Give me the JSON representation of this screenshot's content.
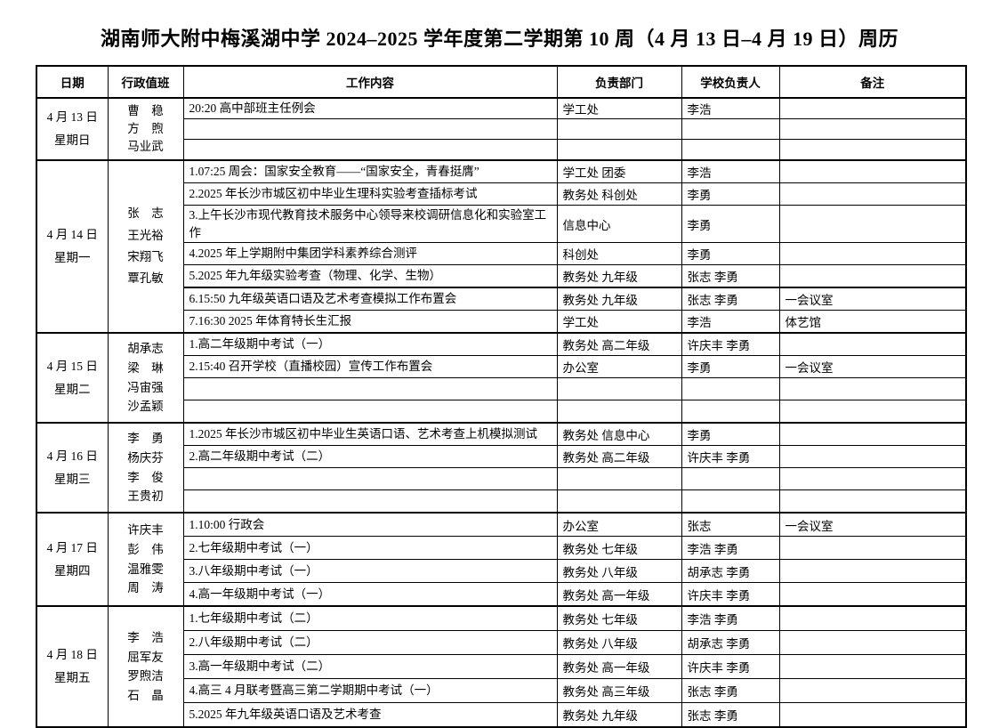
{
  "page": {
    "title": "湖南师大附中梅溪湖中学 2024–2025 学年度第二学期第 10 周（4 月 13 日–4 月 19 日）周历"
  },
  "table": {
    "headers": [
      "日期",
      "行政值班",
      "工作内容",
      "负责部门",
      "学校负责人",
      "备注"
    ],
    "days": [
      {
        "date": "4 月 13 日",
        "weekday": "星期日",
        "duty": [
          "曹　稳",
          "方　煦",
          "马业武"
        ],
        "rows": [
          {
            "content": "20:20 高中部班主任例会",
            "dept": "学工处",
            "leader": "李浩",
            "note": ""
          },
          {
            "content": "",
            "dept": "",
            "leader": "",
            "note": ""
          },
          {
            "content": "",
            "dept": "",
            "leader": "",
            "note": ""
          }
        ]
      },
      {
        "date": "4 月 14 日",
        "weekday": "星期一",
        "duty": [
          "张　志",
          "王光裕",
          "宋翔飞",
          "覃孔敏"
        ],
        "rows": [
          {
            "content": "1.07:25 周会：国家安全教育——“国家安全，青春挺膺”",
            "dept": "学工处 团委",
            "leader": "李浩",
            "note": ""
          },
          {
            "content": "2.2025 年长沙市城区初中毕业生理科实验考查插标考试",
            "dept": "教务处 科创处",
            "leader": "李勇",
            "note": ""
          },
          {
            "content": "3.上午长沙市现代教育技术服务中心领导来校调研信息化和实验室工作",
            "dept": "信息中心",
            "leader": "李勇",
            "note": ""
          },
          {
            "content": "4.2025 年上学期附中集团学科素养综合测评",
            "dept": "科创处",
            "leader": "李勇",
            "note": ""
          },
          {
            "content": "5.2025 年九年级实验考查（物理、化学、生物）",
            "dept": "教务处 九年级",
            "leader": "张志 李勇",
            "note": ""
          },
          {
            "content": "6.15:50 九年级英语口语及艺术考查模拟工作布置会",
            "dept": "教务处 九年级",
            "leader": "张志 李勇",
            "note": "一会议室"
          },
          {
            "content": "7.16:30 2025 年体育特长生汇报",
            "dept": "学工处",
            "leader": "李浩",
            "note": "体艺馆"
          }
        ]
      },
      {
        "date": "4 月 15 日",
        "weekday": "星期二",
        "duty": [
          "胡承志",
          "梁　琳",
          "冯宙强",
          "沙孟颖"
        ],
        "rows": [
          {
            "content": "1.高二年级期中考试（一）",
            "dept": "教务处 高二年级",
            "leader": "许庆丰 李勇",
            "note": ""
          },
          {
            "content": "2.15:40 召开学校（直播校园）宣传工作布置会",
            "dept": "办公室",
            "leader": "李勇",
            "note": "一会议室"
          },
          {
            "content": "",
            "dept": "",
            "leader": "",
            "note": ""
          },
          {
            "content": "",
            "dept": "",
            "leader": "",
            "note": ""
          }
        ]
      },
      {
        "date": "4 月 16 日",
        "weekday": "星期三",
        "duty": [
          "李　勇",
          "杨庆芬",
          "李　俊",
          "王贵初"
        ],
        "rows": [
          {
            "content": "1.2025 年长沙市城区初中毕业生英语口语、艺术考查上机模拟测试",
            "dept": "教务处 信息中心",
            "leader": "李勇",
            "note": ""
          },
          {
            "content": "2.高二年级期中考试（二）",
            "dept": "教务处 高二年级",
            "leader": "许庆丰 李勇",
            "note": ""
          },
          {
            "content": "",
            "dept": "",
            "leader": "",
            "note": ""
          },
          {
            "content": "",
            "dept": "",
            "leader": "",
            "note": ""
          }
        ]
      },
      {
        "date": "4 月 17 日",
        "weekday": "星期四",
        "duty": [
          "许庆丰",
          "彭　伟",
          "温雅雯",
          "周　涛"
        ],
        "rows": [
          {
            "content": "1.10:00 行政会",
            "dept": "办公室",
            "leader": "张志",
            "note": "一会议室"
          },
          {
            "content": "2.七年级期中考试（一）",
            "dept": "教务处 七年级",
            "leader": "李浩 李勇",
            "note": ""
          },
          {
            "content": "3.八年级期中考试（一）",
            "dept": "教务处 八年级",
            "leader": "胡承志 李勇",
            "note": ""
          },
          {
            "content": "4.高一年级期中考试（一）",
            "dept": "教务处 高一年级",
            "leader": "许庆丰 李勇",
            "note": ""
          }
        ]
      },
      {
        "date": "4 月 18 日",
        "weekday": "星期五",
        "duty": [
          "李　浩",
          "屈军友",
          "罗煦洁",
          "石　晶"
        ],
        "rows": [
          {
            "content": "1.七年级期中考试（二）",
            "dept": "教务处 七年级",
            "leader": "李浩 李勇",
            "note": ""
          },
          {
            "content": "2.八年级期中考试（二）",
            "dept": "教务处 八年级",
            "leader": "胡承志 李勇",
            "note": ""
          },
          {
            "content": "3.高一年级期中考试（二）",
            "dept": "教务处 高一年级",
            "leader": "许庆丰 李勇",
            "note": ""
          },
          {
            "content": "4.高三 4 月联考暨高三第二学期期中考试（一）",
            "dept": "教务处 高三年级",
            "leader": "张志 李勇",
            "note": ""
          },
          {
            "content": "5.2025 年九年级英语口语及艺术考查",
            "dept": "教务处 九年级",
            "leader": "张志 李勇",
            "note": ""
          }
        ]
      }
    ]
  }
}
